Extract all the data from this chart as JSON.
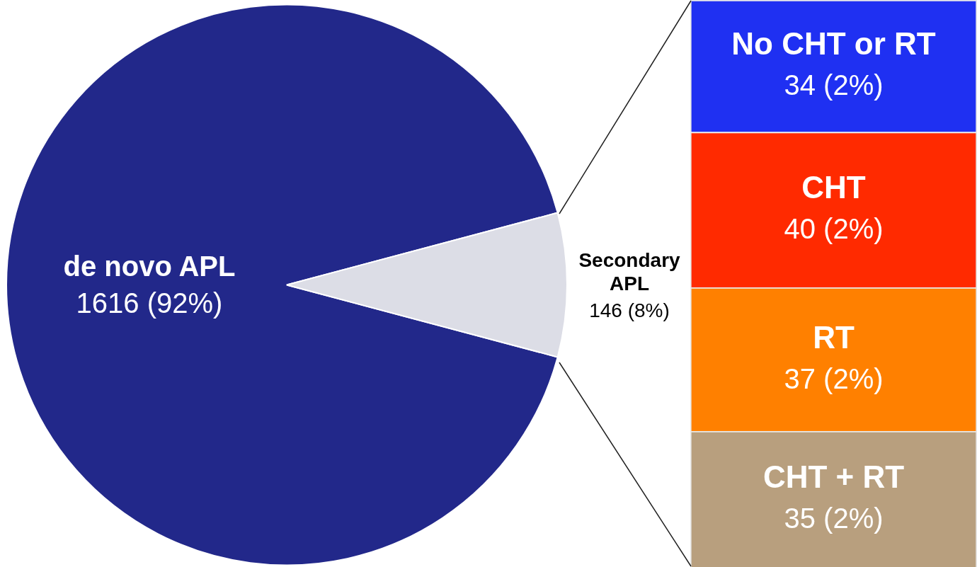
{
  "chart_data": [
    {
      "type": "pie",
      "categories": [
        "de novo APL",
        "Secondary APL"
      ],
      "values": [
        1616,
        146
      ],
      "colors": [
        "#22288a",
        "#dcdde6"
      ],
      "value_labels": [
        "1616 (92%)",
        "146 (8%)"
      ]
    },
    {
      "type": "bar",
      "stacked": true,
      "categories": [
        null
      ],
      "series": [
        {
          "name": "CHT + RT",
          "color": "#b89f7e",
          "values": [
            35
          ],
          "value_labels": [
            "35 (2%)"
          ]
        },
        {
          "name": "RT",
          "color": "#ff8000",
          "values": [
            37
          ],
          "value_labels": [
            "37 (2%)"
          ]
        },
        {
          "name": "CHT",
          "color": "#ff2a00",
          "values": [
            40
          ],
          "value_labels": [
            "40 (2%)"
          ]
        },
        {
          "name": "No CHT or RT",
          "color": "#1f30f2",
          "values": [
            34
          ],
          "value_labels": [
            "34 (2%)"
          ]
        }
      ]
    }
  ]
}
